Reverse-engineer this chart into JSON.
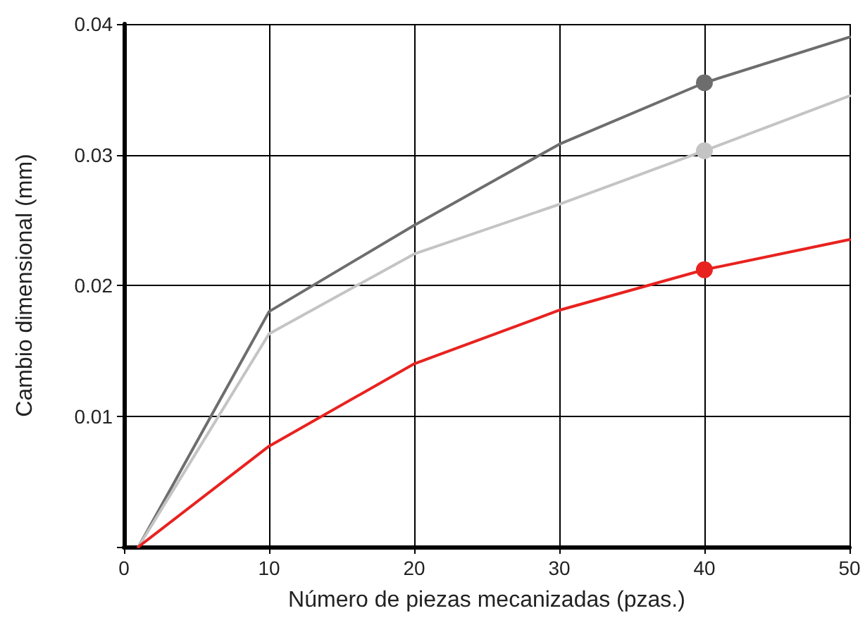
{
  "chart_data": {
    "type": "line",
    "xlabel": "Número de piezas mecanizadas (pzas.)",
    "ylabel": "Cambio dimensional (mm)",
    "x": [
      1,
      10,
      20,
      30,
      40,
      50
    ],
    "series": [
      {
        "color": "#6d6d6d",
        "values": [
          0,
          0.018,
          0.0246,
          0.0308,
          0.0355,
          0.039
        ],
        "marker": "none"
      },
      {
        "color": "#c4c4c4",
        "values": [
          0,
          0.0163,
          0.0224,
          0.0262,
          0.0303,
          0.0345
        ],
        "marker": "none"
      },
      {
        "color": "#e8221f",
        "values": [
          0,
          0.0077,
          0.014,
          0.0181,
          0.0212,
          0.0235
        ],
        "marker": "none"
      },
      {
        "type": "scatter",
        "color": "#6d6d6d",
        "values": [
          null,
          null,
          null,
          null,
          0.0355,
          null
        ],
        "marker": "circle"
      },
      {
        "type": "scatter",
        "color": "#c4c4c4",
        "values": [
          null,
          null,
          null,
          null,
          0.0303,
          null
        ],
        "marker": "circle"
      },
      {
        "type": "scatter",
        "color": "#e8221f",
        "values": [
          null,
          null,
          null,
          null,
          0.0212,
          null
        ],
        "marker": "circle"
      }
    ],
    "xlim": [
      0,
      50
    ],
    "xticks": [
      0,
      10,
      20,
      30,
      40,
      50
    ],
    "ylim": [
      0,
      0.04
    ],
    "yticks": [
      {
        "value": 0,
        "label": null
      },
      0.01,
      0.02,
      0.03,
      0.04
    ],
    "grid": true,
    "line_style": "solid"
  }
}
